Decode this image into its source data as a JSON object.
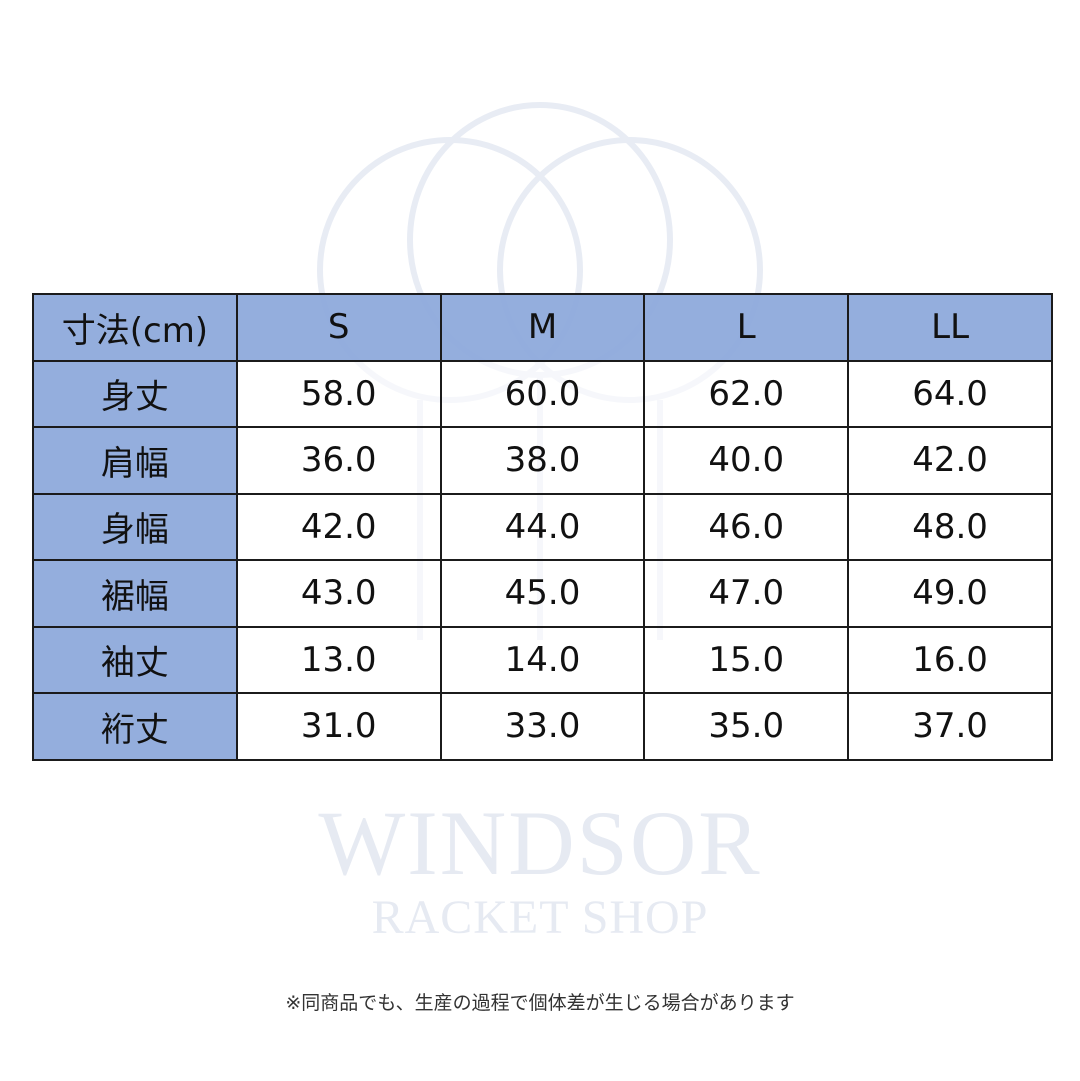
{
  "watermark": {
    "line1": "WINDSOR",
    "line2": "RACKET SHOP"
  },
  "colors": {
    "header_bg": "#8eaadb",
    "border": "#1b1b1b"
  },
  "table": {
    "corner": "寸法(cm)",
    "columns": [
      "S",
      "M",
      "L",
      "LL"
    ],
    "rows": [
      {
        "label": "身丈",
        "values": [
          "58.0",
          "60.0",
          "62.0",
          "64.0"
        ]
      },
      {
        "label": "肩幅",
        "values": [
          "36.0",
          "38.0",
          "40.0",
          "42.0"
        ]
      },
      {
        "label": "身幅",
        "values": [
          "42.0",
          "44.0",
          "46.0",
          "48.0"
        ]
      },
      {
        "label": "裾幅",
        "values": [
          "43.0",
          "45.0",
          "47.0",
          "49.0"
        ]
      },
      {
        "label": "袖丈",
        "values": [
          "13.0",
          "14.0",
          "15.0",
          "16.0"
        ]
      },
      {
        "label": "裄丈",
        "values": [
          "31.0",
          "33.0",
          "35.0",
          "37.0"
        ]
      }
    ]
  },
  "note": "※同商品でも、生産の過程で個体差が生じる場合があります"
}
